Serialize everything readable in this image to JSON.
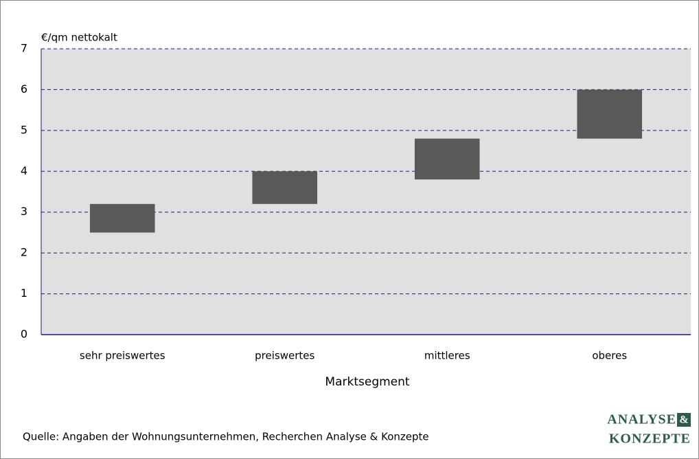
{
  "chart_data": {
    "type": "range_bar",
    "y_axis_label": "€/qm nettokalt",
    "x_axis_label": "Marktsegment",
    "categories": [
      "sehr preiswertes",
      "preiswertes",
      "mittleres",
      "oberes"
    ],
    "low": [
      2.5,
      3.2,
      3.8,
      4.8
    ],
    "high": [
      3.2,
      4.0,
      4.8,
      6.0
    ],
    "color": "#595959",
    "ylim": [
      0,
      7
    ],
    "yticks": [
      0,
      1,
      2,
      3,
      4,
      5,
      6,
      7
    ],
    "grid": true,
    "source": "Quelle: Angaben der Wohnungsunternehmen, Recherchen Analyse & Konzepte",
    "logo": {
      "line1": "ANALYSE",
      "amp": "&",
      "line2": "KONZEPTE"
    }
  }
}
